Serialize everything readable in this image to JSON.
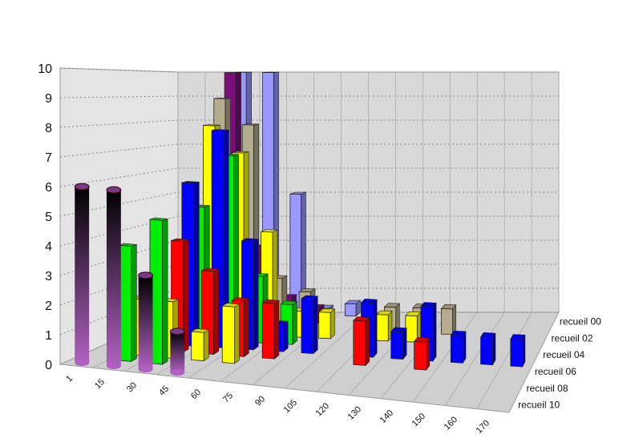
{
  "chart_data": {
    "type": "bar",
    "variant": "3d-grouped-depth",
    "title": "",
    "xlabel": "",
    "ylabel": "",
    "ylim": [
      0,
      10
    ],
    "yticks": [
      "0",
      "1",
      "2",
      "3",
      "4",
      "5",
      "6",
      "7",
      "8",
      "9",
      "10"
    ],
    "categories": [
      "1",
      "15",
      "30",
      "45",
      "60",
      "75",
      "90",
      "105",
      "120",
      "130",
      "140",
      "150",
      "160",
      "170"
    ],
    "grid": true,
    "legend": "none",
    "series": [
      {
        "name": "recueil 00",
        "color": "#9999ff",
        "values": [
          null,
          null,
          10,
          10,
          5,
          0.3,
          0.5,
          null,
          null,
          null,
          null,
          null,
          null,
          null
        ]
      },
      {
        "name": "recueil 02",
        "color": "#7a0f7a",
        "values": [
          null,
          null,
          10,
          3,
          1,
          0.6,
          null,
          null,
          null,
          null,
          null,
          null,
          null,
          null
        ]
      },
      {
        "name": "recueil 04",
        "color": "#b4ac8c",
        "values": [
          null,
          null,
          9,
          8,
          2,
          1.5,
          null,
          null,
          1,
          1,
          1,
          null,
          null,
          null
        ]
      },
      {
        "name": "recueil 06",
        "color": "#ffff00",
        "values": [
          null,
          null,
          8,
          7,
          4,
          1,
          1,
          null,
          1,
          1,
          null,
          null,
          null,
          null
        ]
      },
      {
        "name": "recueil 08",
        "color": "#00ee00",
        "values": [
          null,
          null,
          5,
          7,
          2.5,
          1.5,
          null,
          null,
          null,
          null,
          null,
          null,
          null,
          null
        ]
      },
      {
        "name": "recueil 10",
        "color": "#0000ff",
        "values": [
          null,
          null,
          6,
          8,
          4,
          1,
          2,
          null,
          2,
          1,
          2,
          1,
          1,
          1
        ]
      },
      {
        "name": "",
        "color": "#ff0000",
        "values": [
          null,
          null,
          4,
          3,
          2,
          2,
          null,
          null,
          1.6,
          null,
          1,
          null,
          null,
          null
        ]
      },
      {
        "name": "",
        "color": "#ffff00",
        "values": [
          null,
          2,
          2,
          1,
          2,
          null,
          null,
          null,
          null,
          null,
          null,
          null,
          null,
          null
        ]
      },
      {
        "name": "",
        "color": "#00ee00",
        "values": [
          null,
          4,
          5,
          null,
          null,
          null,
          null,
          null,
          null,
          null,
          null,
          null,
          null,
          null
        ]
      },
      {
        "name": "",
        "color": "#5a2c6f",
        "values": [
          6,
          6,
          3.2,
          1.4,
          null,
          null,
          null,
          null,
          null,
          null,
          null,
          null,
          null,
          null
        ]
      }
    ],
    "depth_labels": [
      "recueil 00",
      "recueil 02",
      "recueil 04",
      "recueil 06",
      "recueil 08",
      "recueil 10"
    ]
  }
}
